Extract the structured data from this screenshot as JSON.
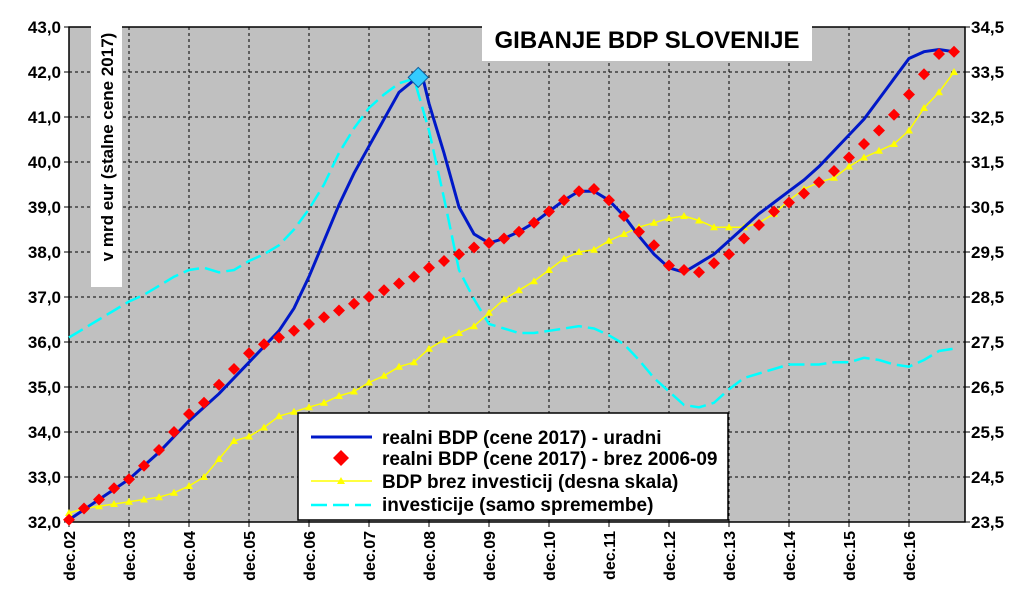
{
  "chart_data": {
    "type": "line",
    "title": "GIBANJE BDP SLOVENIJE",
    "ylabel": "v mrd eur (stalne cene 2017)",
    "ylim": [
      32.0,
      43.0
    ],
    "y2lim": [
      23.5,
      34.5
    ],
    "yticks": [
      "32,0",
      "33,0",
      "34,0",
      "35,0",
      "36,0",
      "37,0",
      "38,0",
      "39,0",
      "40,0",
      "41,0",
      "42,0",
      "43,0"
    ],
    "y2ticks": [
      "23,5",
      "24,5",
      "25,5",
      "26,5",
      "27,5",
      "28,5",
      "29,5",
      "30,5",
      "31,5",
      "32,5",
      "33,5",
      "34,5"
    ],
    "xticks": [
      "dec.02",
      "dec.03",
      "dec.04",
      "dec.05",
      "dec.06",
      "dec.07",
      "dec.08",
      "dec.09",
      "dec.10",
      "dec.11",
      "dec.12",
      "dec.13",
      "dec.14",
      "dec.15",
      "dec.16"
    ],
    "grid": true,
    "legend_position": "bottom-center",
    "colors": {
      "plot_bg": "#C0C0C0",
      "uradni": "#0018C8",
      "brez": "#FF0000",
      "brez_inv": "#FFFF00",
      "investicije": "#00FFFF",
      "peak_marker": "#33CCFF"
    },
    "series": [
      {
        "name": "realni BDP (cene 2017) - uradni",
        "axis": "left",
        "x": [
          2002.0,
          2002.5,
          2003.0,
          2003.5,
          2004.0,
          2004.5,
          2005.0,
          2005.5,
          2005.75,
          2006.0,
          2006.25,
          2006.5,
          2006.75,
          2007.0,
          2007.25,
          2007.5,
          2007.75,
          2007.9,
          2008.0,
          2008.25,
          2008.5,
          2008.75,
          2009.0,
          2009.25,
          2009.5,
          2009.75,
          2010.0,
          2010.25,
          2010.5,
          2010.75,
          2011.0,
          2011.25,
          2011.5,
          2011.75,
          2012.0,
          2012.25,
          2012.5,
          2012.75,
          2013.0,
          2013.25,
          2013.5,
          2013.75,
          2014.0,
          2014.25,
          2014.5,
          2014.75,
          2015.0,
          2015.25,
          2015.5,
          2015.75,
          2016.0,
          2016.25,
          2016.5,
          2016.75
        ],
        "y": [
          32.05,
          32.5,
          32.95,
          33.55,
          34.25,
          34.85,
          35.55,
          36.25,
          36.75,
          37.45,
          38.25,
          39.05,
          39.75,
          40.35,
          40.95,
          41.55,
          41.82,
          41.85,
          41.3,
          40.2,
          39.0,
          38.4,
          38.2,
          38.3,
          38.45,
          38.65,
          38.9,
          39.15,
          39.35,
          39.35,
          39.15,
          38.8,
          38.35,
          37.95,
          37.65,
          37.55,
          37.75,
          37.95,
          38.25,
          38.55,
          38.85,
          39.1,
          39.35,
          39.6,
          39.9,
          40.25,
          40.6,
          40.95,
          41.4,
          41.85,
          42.3,
          42.45,
          42.5,
          42.45
        ]
      },
      {
        "name": "realni BDP (cene 2017) - brez 2006-09",
        "axis": "left",
        "x": [
          2002.0,
          2002.25,
          2002.5,
          2002.75,
          2003.0,
          2003.25,
          2003.5,
          2003.75,
          2004.0,
          2004.25,
          2004.5,
          2004.75,
          2005.0,
          2005.25,
          2005.5,
          2005.75,
          2006.0,
          2006.25,
          2006.5,
          2006.75,
          2007.0,
          2007.25,
          2007.5,
          2007.75,
          2008.0,
          2008.25,
          2008.5,
          2008.75,
          2009.0,
          2009.25,
          2009.5,
          2009.75,
          2010.0,
          2010.25,
          2010.5,
          2010.75,
          2011.0,
          2011.25,
          2011.5,
          2011.75,
          2012.0,
          2012.25,
          2012.5,
          2012.75,
          2013.0,
          2013.25,
          2013.5,
          2013.75,
          2014.0,
          2014.25,
          2014.5,
          2014.75,
          2015.0,
          2015.25,
          2015.5,
          2015.75,
          2016.0,
          2016.25,
          2016.5,
          2016.75
        ],
        "y": [
          32.05,
          32.3,
          32.5,
          32.75,
          32.95,
          33.25,
          33.6,
          34.0,
          34.4,
          34.65,
          35.05,
          35.4,
          35.75,
          35.95,
          36.1,
          36.25,
          36.4,
          36.55,
          36.7,
          36.85,
          37.0,
          37.15,
          37.3,
          37.45,
          37.65,
          37.8,
          37.95,
          38.1,
          38.2,
          38.3,
          38.45,
          38.65,
          38.9,
          39.15,
          39.35,
          39.4,
          39.15,
          38.8,
          38.45,
          38.15,
          37.7,
          37.6,
          37.55,
          37.75,
          37.95,
          38.3,
          38.6,
          38.9,
          39.1,
          39.3,
          39.55,
          39.8,
          40.1,
          40.4,
          40.7,
          41.05,
          41.5,
          41.95,
          42.4,
          42.45
        ]
      },
      {
        "name": "BDP brez investicij (desna skala)",
        "axis": "right",
        "x": [
          2002.0,
          2002.25,
          2002.5,
          2002.75,
          2003.0,
          2003.25,
          2003.5,
          2003.75,
          2004.0,
          2004.25,
          2004.5,
          2004.75,
          2005.0,
          2005.25,
          2005.5,
          2005.75,
          2006.0,
          2006.25,
          2006.5,
          2006.75,
          2007.0,
          2007.25,
          2007.5,
          2007.75,
          2008.0,
          2008.25,
          2008.5,
          2008.75,
          2009.0,
          2009.25,
          2009.5,
          2009.75,
          2010.0,
          2010.25,
          2010.5,
          2010.75,
          2011.0,
          2011.25,
          2011.5,
          2011.75,
          2012.0,
          2012.25,
          2012.5,
          2012.75,
          2013.0,
          2013.25,
          2013.5,
          2013.75,
          2014.0,
          2014.25,
          2014.5,
          2014.75,
          2015.0,
          2015.25,
          2015.5,
          2015.75,
          2016.0,
          2016.25,
          2016.5,
          2016.75
        ],
        "y": [
          23.7,
          23.8,
          23.85,
          23.9,
          23.95,
          24.0,
          24.05,
          24.15,
          24.3,
          24.5,
          24.9,
          25.3,
          25.4,
          25.6,
          25.85,
          25.95,
          26.05,
          26.15,
          26.3,
          26.4,
          26.6,
          26.75,
          26.95,
          27.05,
          27.35,
          27.55,
          27.7,
          27.85,
          28.15,
          28.45,
          28.65,
          28.85,
          29.1,
          29.35,
          29.5,
          29.55,
          29.75,
          29.9,
          30.05,
          30.15,
          30.25,
          30.3,
          30.2,
          30.05,
          30.05,
          30.05,
          30.15,
          30.35,
          30.65,
          30.9,
          31.05,
          31.15,
          31.4,
          31.6,
          31.75,
          31.9,
          32.2,
          32.7,
          33.05,
          33.5
        ]
      },
      {
        "name": "investicije (samo spremembe)",
        "axis": "left",
        "x": [
          2002.0,
          2002.25,
          2002.5,
          2002.75,
          2003.0,
          2003.25,
          2003.5,
          2003.75,
          2004.0,
          2004.25,
          2004.5,
          2004.75,
          2005.0,
          2005.25,
          2005.5,
          2005.75,
          2006.0,
          2006.25,
          2006.5,
          2006.75,
          2007.0,
          2007.25,
          2007.5,
          2007.75,
          2008.0,
          2008.25,
          2008.5,
          2008.75,
          2009.0,
          2009.25,
          2009.5,
          2009.75,
          2010.0,
          2010.25,
          2010.5,
          2010.75,
          2011.0,
          2011.25,
          2011.5,
          2011.75,
          2012.0,
          2012.25,
          2012.5,
          2012.75,
          2013.0,
          2013.25,
          2013.5,
          2013.75,
          2014.0,
          2014.25,
          2014.5,
          2014.75,
          2015.0,
          2015.25,
          2015.5,
          2015.75,
          2016.0,
          2016.25,
          2016.5,
          2016.75
        ],
        "y": [
          36.1,
          36.3,
          36.5,
          36.7,
          36.9,
          37.05,
          37.25,
          37.45,
          37.6,
          37.65,
          37.55,
          37.6,
          37.8,
          37.95,
          38.15,
          38.5,
          38.95,
          39.5,
          40.2,
          40.75,
          41.2,
          41.5,
          41.75,
          41.85,
          40.7,
          39.2,
          37.6,
          36.95,
          36.4,
          36.3,
          36.2,
          36.2,
          36.25,
          36.3,
          36.35,
          36.3,
          36.15,
          35.95,
          35.6,
          35.2,
          34.9,
          34.6,
          34.55,
          34.65,
          34.95,
          35.2,
          35.3,
          35.4,
          35.5,
          35.5,
          35.5,
          35.55,
          35.55,
          35.65,
          35.6,
          35.5,
          35.45,
          35.6,
          35.8,
          35.85
        ]
      }
    ],
    "annotations": [
      {
        "type": "peak-marker",
        "series": "realni BDP (cene 2017) - uradni",
        "x": 2007.82,
        "y": 41.88
      }
    ]
  }
}
